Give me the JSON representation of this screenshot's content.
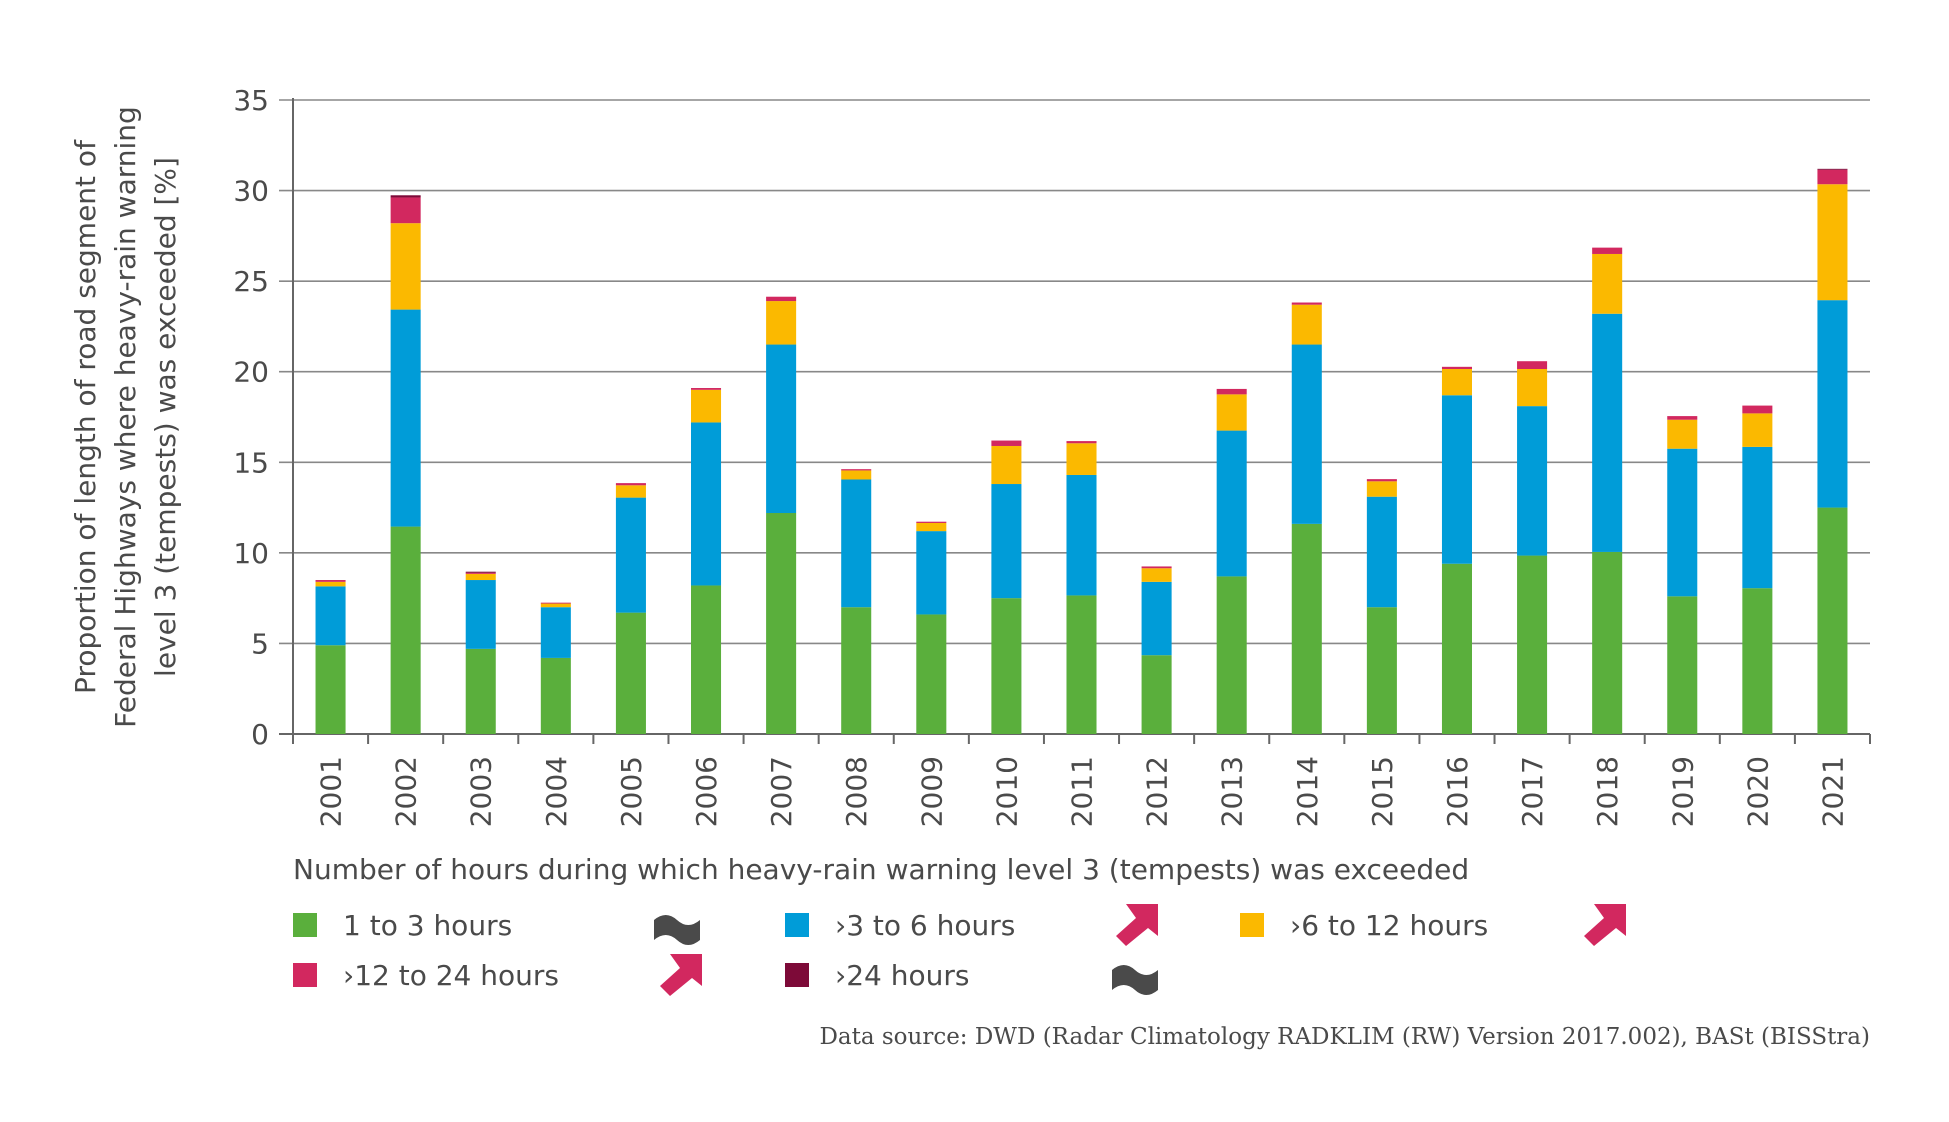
{
  "chart_data": {
    "type": "bar",
    "stacked": true,
    "title": "",
    "ylabel_lines": [
      "Proportion of length of road segment of",
      "Federal Highways where heavy-rain warning",
      "level 3 (tempests) was exceeded [%]"
    ],
    "xlabel": "",
    "ylim": [
      0,
      35
    ],
    "yticks": [
      0,
      5,
      10,
      15,
      20,
      25,
      30,
      35
    ],
    "grid": true,
    "categories": [
      "2001",
      "2002",
      "2003",
      "2004",
      "2005",
      "2006",
      "2007",
      "2008",
      "2009",
      "2010",
      "2011",
      "2012",
      "2013",
      "2014",
      "2015",
      "2016",
      "2017",
      "2018",
      "2019",
      "2020",
      "2021"
    ],
    "series": [
      {
        "name": "1 to 3 hours",
        "color": "#5aaf3c",
        "values": [
          4.9,
          11.45,
          4.7,
          4.2,
          6.7,
          8.2,
          12.2,
          7.0,
          6.6,
          7.5,
          7.65,
          4.35,
          8.7,
          11.6,
          7.0,
          9.4,
          9.85,
          10.05,
          7.6,
          8.05,
          12.5
        ]
      },
      {
        "name": ">3 to 6 hours",
        "color": "#009cd8",
        "values": [
          3.25,
          11.98,
          3.8,
          2.8,
          6.35,
          9.0,
          9.3,
          7.05,
          4.6,
          6.3,
          6.65,
          4.05,
          8.05,
          9.9,
          6.1,
          9.3,
          8.25,
          13.15,
          8.15,
          7.8,
          11.45
        ]
      },
      {
        "name": ">6 to 12 hours",
        "color": "#fbb900",
        "values": [
          0.25,
          4.77,
          0.34,
          0.2,
          0.68,
          1.8,
          2.4,
          0.5,
          0.45,
          2.1,
          1.75,
          0.75,
          2.0,
          2.2,
          0.85,
          1.45,
          2.05,
          3.3,
          1.6,
          1.85,
          6.4
        ]
      },
      {
        "name": ">12 to 24 hours",
        "color": "#d2285f",
        "values": [
          0.1,
          1.42,
          0.06,
          0.05,
          0.12,
          0.1,
          0.24,
          0.07,
          0.07,
          0.3,
          0.12,
          0.1,
          0.3,
          0.12,
          0.12,
          0.12,
          0.43,
          0.35,
          0.2,
          0.43,
          0.8
        ]
      },
      {
        "name": ">24 hours",
        "color": "#7d0a38",
        "values": [
          0,
          0.12,
          0.06,
          0,
          0,
          0,
          0,
          0,
          0,
          0,
          0,
          0,
          0,
          0,
          0,
          0,
          0,
          0,
          0,
          0,
          0.05
        ]
      }
    ],
    "legend_placement": "bottom"
  },
  "legend": {
    "title": "Number of hours during which heavy-rain warning level 3 (tempests) was exceeded",
    "items": [
      {
        "label": "1 to 3 hours",
        "color": "#5aaf3c",
        "trend": "no-trend-wave-icon"
      },
      {
        "label": "›3 to 6 hours",
        "color": "#009cd8",
        "trend": "increasing-arrow-icon"
      },
      {
        "label": "›6 to 12 hours",
        "color": "#fbb900",
        "trend": "increasing-arrow-icon"
      },
      {
        "label": "›12 to 24 hours",
        "color": "#d2285f",
        "trend": "increasing-arrow-icon"
      },
      {
        "label": "›24 hours",
        "color": "#7d0a38",
        "trend": "no-trend-wave-icon"
      }
    ],
    "trend_colors": {
      "no_trend": "#4a4a4a",
      "increasing": "#d2285f"
    }
  },
  "source": "Data source: DWD (Radar Climatology RADKLIM (RW) Version 2017.002), BASt (BISStra)"
}
